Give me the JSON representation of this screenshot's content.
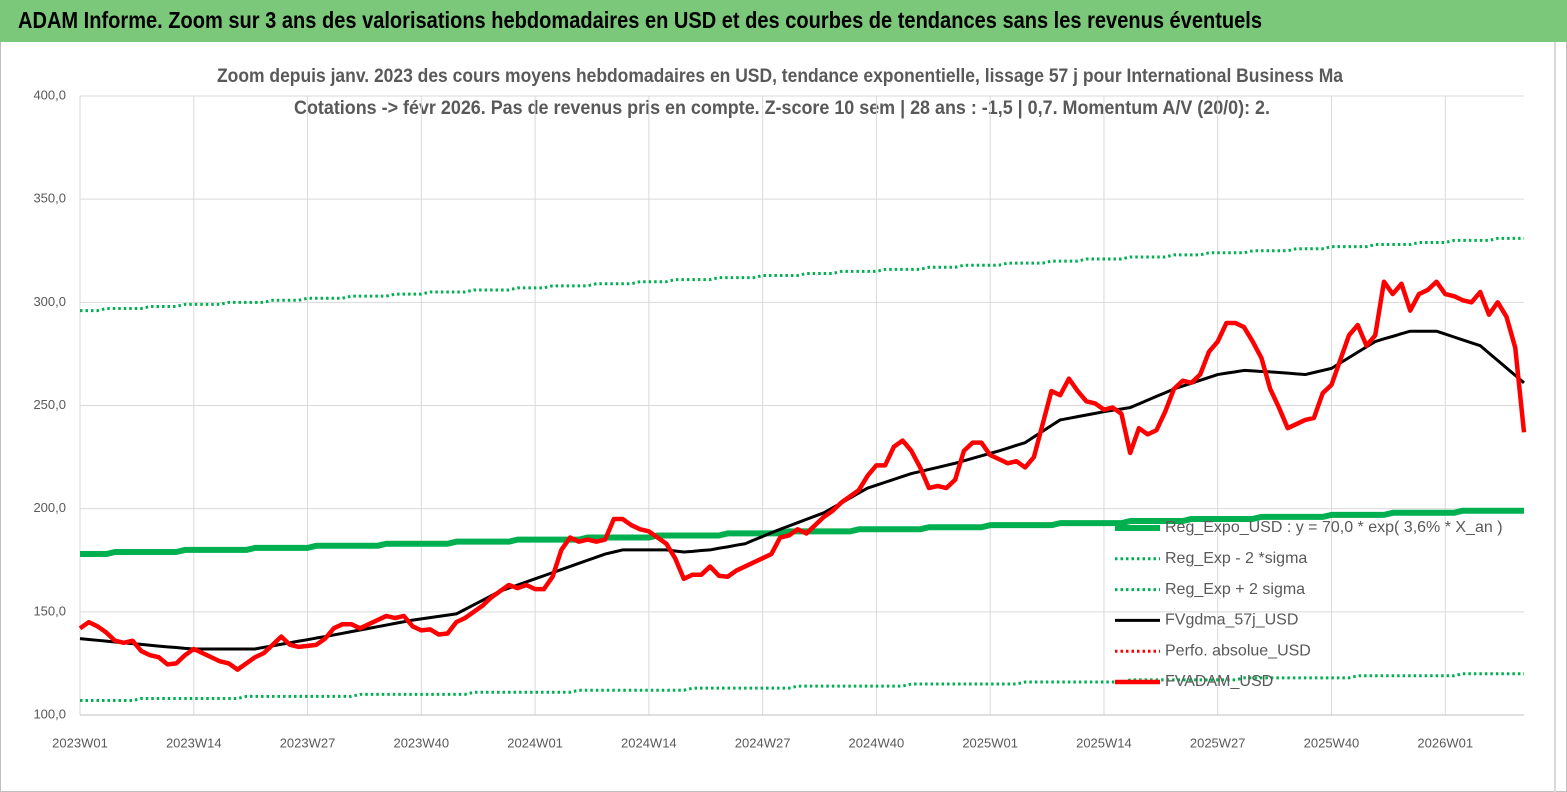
{
  "chart_data": {
    "type": "line",
    "header": "ADAM Informe. Zoom sur 3 ans des valorisations hebdomadaires en USD et des courbes de tendances sans les revenus éventuels",
    "title": "Zoom depuis janv. 2023 des cours moyens hebdomadaires en USD, tendance exponentielle, lissage 57 j pour International Business Ma",
    "subtitle": "Cotations -> févr 2026. Pas de revenus pris en compte. Z-score 10 sem  | 28 ans : -1,5 | 0,7. Momentum A/V (20/0): 2.",
    "categories": [
      "2023W01",
      null,
      null,
      null,
      null,
      null,
      null,
      null,
      null,
      null,
      null,
      null,
      null,
      "2023W14",
      null,
      null,
      null,
      null,
      null,
      null,
      null,
      null,
      null,
      null,
      null,
      null,
      "2023W27",
      null,
      null,
      null,
      null,
      null,
      null,
      null,
      null,
      null,
      null,
      null,
      null,
      "2023W40",
      null,
      null,
      null,
      null,
      null,
      null,
      null,
      null,
      null,
      null,
      null,
      null,
      "2024W01",
      null,
      null,
      null,
      null,
      null,
      null,
      null,
      null,
      null,
      null,
      null,
      null,
      "2024W14",
      null,
      null,
      null,
      null,
      null,
      null,
      null,
      null,
      null,
      null,
      null,
      null,
      "2024W27",
      null,
      null,
      null,
      null,
      null,
      null,
      null,
      null,
      null,
      null,
      null,
      null,
      "2024W40",
      null,
      null,
      null,
      null,
      null,
      null,
      null,
      null,
      null,
      null,
      null,
      null,
      "2025W01",
      null,
      null,
      null,
      null,
      null,
      null,
      null,
      null,
      null,
      null,
      null,
      null,
      "2025W14",
      null,
      null,
      null,
      null,
      null,
      null,
      null,
      null,
      null,
      null,
      null,
      null,
      "2025W27",
      null,
      null,
      null,
      null,
      null,
      null,
      null,
      null,
      null,
      null,
      null,
      null,
      "2025W40",
      null,
      null,
      null,
      null,
      null,
      null,
      null,
      null,
      null,
      null,
      null,
      null,
      "2026W01",
      null,
      null,
      null,
      null,
      null,
      null,
      null,
      null,
      null
    ],
    "ylim": [
      100,
      400
    ],
    "yticks": [
      {
        "value": 100,
        "label": "100,0"
      },
      {
        "value": 150,
        "label": "150,0"
      },
      {
        "value": 200,
        "label": "200,0"
      },
      {
        "value": 250,
        "label": "250,0"
      },
      {
        "value": 300,
        "label": "300,0"
      },
      {
        "value": 350,
        "label": "350,0"
      },
      {
        "value": 400,
        "label": "400,0"
      }
    ],
    "grid": true,
    "legend": "right",
    "series": [
      {
        "name": "Reg_Expo_USD : y = 70,0 * exp( 3,6% *  X_an )",
        "color": "#00b050",
        "style": "thick",
        "values": [
          178,
          178,
          178,
          178,
          179,
          179,
          179,
          179,
          179,
          179,
          179,
          179,
          180,
          180,
          180,
          180,
          180,
          180,
          180,
          180,
          181,
          181,
          181,
          181,
          181,
          181,
          181,
          182,
          182,
          182,
          182,
          182,
          182,
          182,
          182,
          183,
          183,
          183,
          183,
          183,
          183,
          183,
          183,
          184,
          184,
          184,
          184,
          184,
          184,
          184,
          185,
          185,
          185,
          185,
          185,
          185,
          185,
          185,
          186,
          186,
          186,
          186,
          186,
          186,
          186,
          186,
          187,
          187,
          187,
          187,
          187,
          187,
          187,
          187,
          188,
          188,
          188,
          188,
          188,
          188,
          188,
          189,
          189,
          189,
          189,
          189,
          189,
          189,
          189,
          190,
          190,
          190,
          190,
          190,
          190,
          190,
          190,
          191,
          191,
          191,
          191,
          191,
          191,
          191,
          192,
          192,
          192,
          192,
          192,
          192,
          192,
          192,
          193,
          193,
          193,
          193,
          193,
          193,
          193,
          193,
          194,
          194,
          194,
          194,
          194,
          194,
          194,
          195,
          195,
          195,
          195,
          195,
          195,
          195,
          195,
          196,
          196,
          196,
          196,
          196,
          196,
          196,
          196,
          197,
          197,
          197,
          197,
          197,
          197,
          197,
          198,
          198,
          198,
          198,
          198,
          198,
          198,
          198,
          199,
          199,
          199,
          199,
          199,
          199,
          199,
          199
        ]
      },
      {
        "name": "Reg_Exp - 2 *sigma",
        "color": "#00b050",
        "style": "dotted",
        "values": [
          107,
          107,
          107,
          107,
          107,
          107,
          107,
          108,
          108,
          108,
          108,
          108,
          108,
          108,
          108,
          108,
          108,
          108,
          108,
          109,
          109,
          109,
          109,
          109,
          109,
          109,
          109,
          109,
          109,
          109,
          109,
          109,
          110,
          110,
          110,
          110,
          110,
          110,
          110,
          110,
          110,
          110,
          110,
          110,
          110,
          111,
          111,
          111,
          111,
          111,
          111,
          111,
          111,
          111,
          111,
          111,
          111,
          112,
          112,
          112,
          112,
          112,
          112,
          112,
          112,
          112,
          112,
          112,
          112,
          112,
          113,
          113,
          113,
          113,
          113,
          113,
          113,
          113,
          113,
          113,
          113,
          113,
          114,
          114,
          114,
          114,
          114,
          114,
          114,
          114,
          114,
          114,
          114,
          114,
          114,
          115,
          115,
          115,
          115,
          115,
          115,
          115,
          115,
          115,
          115,
          115,
          115,
          115,
          116,
          116,
          116,
          116,
          116,
          116,
          116,
          116,
          116,
          116,
          116,
          116,
          117,
          117,
          117,
          117,
          117,
          117,
          117,
          117,
          117,
          117,
          117,
          117,
          117,
          118,
          118,
          118,
          118,
          118,
          118,
          118,
          118,
          118,
          118,
          118,
          118,
          118,
          119,
          119,
          119,
          119,
          119,
          119,
          119,
          119,
          119,
          119,
          119,
          119,
          120,
          120,
          120,
          120,
          120,
          120,
          120,
          120
        ]
      },
      {
        "name": "Reg_Exp + 2 sigma",
        "color": "#00b050",
        "style": "dotted",
        "values": [
          296,
          296,
          296,
          297,
          297,
          297,
          297,
          297,
          298,
          298,
          298,
          298,
          299,
          299,
          299,
          299,
          299,
          300,
          300,
          300,
          300,
          300,
          301,
          301,
          301,
          301,
          302,
          302,
          302,
          302,
          302,
          303,
          303,
          303,
          303,
          303,
          304,
          304,
          304,
          304,
          305,
          305,
          305,
          305,
          305,
          306,
          306,
          306,
          306,
          306,
          307,
          307,
          307,
          307,
          308,
          308,
          308,
          308,
          308,
          309,
          309,
          309,
          309,
          309,
          310,
          310,
          310,
          310,
          311,
          311,
          311,
          311,
          311,
          312,
          312,
          312,
          312,
          312,
          313,
          313,
          313,
          313,
          313,
          314,
          314,
          314,
          314,
          315,
          315,
          315,
          315,
          315,
          316,
          316,
          316,
          316,
          316,
          317,
          317,
          317,
          317,
          318,
          318,
          318,
          318,
          318,
          319,
          319,
          319,
          319,
          319,
          320,
          320,
          320,
          320,
          321,
          321,
          321,
          321,
          321,
          322,
          322,
          322,
          322,
          322,
          323,
          323,
          323,
          323,
          324,
          324,
          324,
          324,
          324,
          325,
          325,
          325,
          325,
          325,
          326,
          326,
          326,
          326,
          327,
          327,
          327,
          327,
          327,
          328,
          328,
          328,
          328,
          328,
          329,
          329,
          329,
          329,
          330,
          330,
          330,
          330,
          330,
          331,
          331,
          331,
          331
        ]
      },
      {
        "name": "FVgdma_57j_USD",
        "color": "#000000",
        "style": "solid",
        "values": [
          137,
          136.6,
          136.2,
          135.8,
          135.4,
          135,
          134.6,
          134.2,
          133.8,
          133.4,
          133,
          132.7,
          132.3,
          132,
          132,
          132,
          132,
          132,
          132,
          132,
          132,
          132.8,
          133.5,
          134.3,
          135,
          135.8,
          136.5,
          137.3,
          138,
          138.8,
          139.6,
          140.4,
          141.2,
          142,
          142.8,
          143.6,
          144.4,
          145.2,
          146,
          146.6,
          147.2,
          147.8,
          148.4,
          149,
          151.2,
          153.4,
          155.6,
          157.8,
          160,
          161.5,
          163,
          164.5,
          166,
          167.5,
          169,
          170.5,
          172,
          173.5,
          175,
          176.5,
          178,
          179,
          180,
          180,
          180,
          180,
          180,
          180,
          179.5,
          179,
          179.3,
          179.7,
          180,
          180.8,
          181.5,
          182.3,
          183,
          184.8,
          186.5,
          188.3,
          190,
          191.6,
          193.2,
          194.8,
          196.4,
          198,
          200.4,
          202.8,
          205.2,
          207.6,
          210,
          211.4,
          212.8,
          214.2,
          215.6,
          217,
          218,
          219,
          220,
          221,
          222,
          223.2,
          224.4,
          225.6,
          226.8,
          228,
          229.3,
          230.7,
          232,
          234.8,
          237.5,
          240.3,
          243,
          243.8,
          244.6,
          245.4,
          246.2,
          247,
          247.7,
          248.3,
          249,
          250.8,
          252.6,
          254.4,
          256.2,
          258,
          259.4,
          260.8,
          262.2,
          263.6,
          265,
          265.7,
          266.3,
          267,
          266.8,
          266.5,
          266.3,
          266,
          265.7,
          265.3,
          265,
          266,
          267,
          268,
          270.6,
          273.2,
          275.8,
          278.4,
          281,
          282.3,
          283.5,
          284.8,
          286,
          286,
          286,
          286,
          284.6,
          283.2,
          281.8,
          280.4,
          279,
          275.4,
          271.8,
          268.2,
          264.6,
          261
        ]
      },
      {
        "name": "Perfo. absolue_USD",
        "color": "#ff0000",
        "style": "dotted",
        "values": [
          null,
          null,
          null,
          null,
          null,
          null,
          null,
          null,
          null,
          null,
          null,
          null,
          null,
          null,
          null,
          null,
          null,
          null,
          null,
          null,
          null,
          null,
          null,
          null,
          null,
          null,
          null,
          null,
          null,
          null,
          null,
          null,
          null,
          null,
          null,
          null,
          null,
          null,
          null,
          null,
          null,
          null,
          null,
          null,
          null,
          null,
          null,
          null,
          null,
          null,
          null,
          null,
          null,
          null,
          null,
          null,
          null,
          null,
          null,
          null,
          null,
          null,
          null,
          null,
          null,
          null,
          null,
          null,
          null,
          null,
          null,
          null,
          null,
          null,
          null,
          null,
          null,
          null,
          null,
          null,
          null,
          null,
          null,
          null,
          null,
          null,
          null,
          null,
          null,
          null,
          null,
          null,
          null,
          null,
          null,
          null,
          null,
          null,
          null,
          null,
          null,
          null,
          null,
          null,
          null,
          null,
          null,
          null,
          null,
          null,
          null,
          null,
          null,
          null,
          null,
          null,
          null,
          null,
          null,
          null,
          null,
          null,
          null,
          null,
          null,
          null,
          null,
          null,
          null,
          null,
          null,
          null,
          null,
          null,
          null,
          null,
          null,
          null,
          null,
          null,
          null,
          null,
          null,
          null,
          null,
          null,
          null,
          null,
          null,
          null,
          null,
          null,
          null,
          null,
          null,
          null,
          null,
          null,
          null,
          null,
          null,
          null,
          null,
          null,
          null,
          null
        ]
      },
      {
        "name": "FVADAM_USD",
        "color": "#ff0000",
        "style": "bold",
        "values": [
          142,
          145,
          143,
          140,
          136,
          135,
          136,
          131,
          129,
          128,
          124.5,
          125,
          129,
          132,
          130,
          128,
          126,
          125,
          122,
          125,
          128,
          130,
          134,
          138,
          134,
          133,
          133.5,
          134,
          137,
          142,
          144,
          144,
          142,
          144,
          146,
          148,
          147,
          148,
          143,
          141,
          141.5,
          139,
          139.5,
          145,
          147,
          150,
          153,
          157,
          160,
          163,
          161.5,
          163,
          161,
          161,
          167,
          180,
          186,
          184,
          185,
          184,
          185,
          195,
          195,
          192,
          190,
          189,
          186,
          183,
          176,
          166,
          168,
          168,
          172,
          167.5,
          167,
          170,
          172,
          174,
          176,
          178,
          186,
          187,
          190,
          188,
          192,
          196,
          199,
          203,
          206,
          209,
          216,
          221,
          221,
          230,
          233,
          228,
          220,
          210,
          211,
          210,
          214,
          228,
          232,
          232,
          226,
          224,
          222,
          223,
          220,
          225,
          241,
          257,
          255,
          263,
          257,
          252,
          251,
          248,
          249,
          246,
          227,
          239,
          236,
          238,
          247,
          258,
          262,
          261,
          265,
          276,
          281,
          290,
          290,
          288,
          281,
          273,
          258,
          249,
          239,
          241,
          243,
          244,
          256,
          260,
          272,
          284,
          289,
          279,
          284,
          310,
          304,
          309,
          296,
          304,
          306,
          310,
          304,
          303,
          301,
          300,
          305,
          294,
          300,
          293,
          278,
          237
        ]
      }
    ]
  }
}
